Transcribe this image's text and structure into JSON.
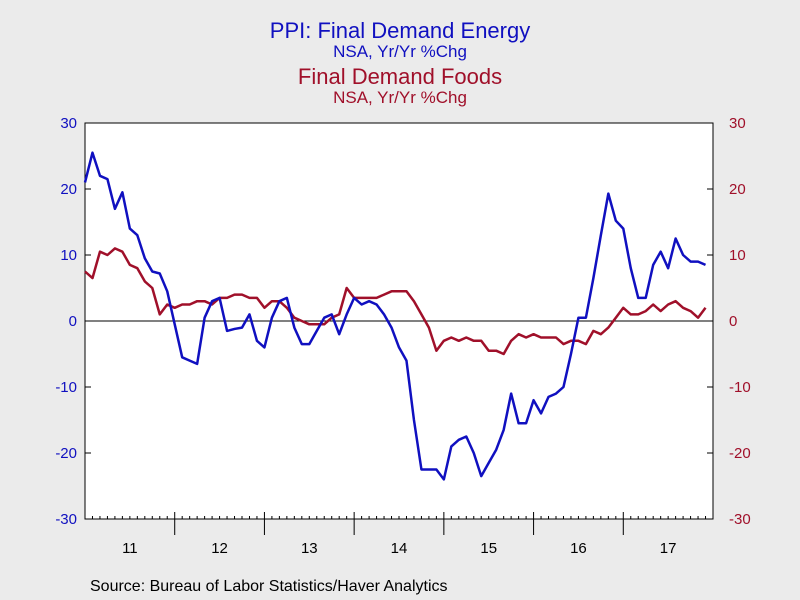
{
  "chart_data": {
    "type": "line",
    "title_1": "PPI: Final Demand Energy",
    "subtitle_1": "NSA, Yr/Yr %Chg",
    "title_2": "Final Demand Foods",
    "subtitle_2": "NSA, Yr/Yr %Chg",
    "source": "Source:  Bureau of Labor Statistics/Haver Analytics",
    "y_left": {
      "range": [
        -30,
        30
      ],
      "ticks": [
        30,
        20,
        10,
        0,
        -10,
        -20,
        -30
      ],
      "color": "#1010C0"
    },
    "y_right": {
      "range": [
        -30,
        30
      ],
      "ticks": [
        30,
        20,
        10,
        0,
        -10,
        -20,
        -30
      ],
      "color": "#A0102A"
    },
    "x_tick_labels": [
      "11",
      "12",
      "13",
      "14",
      "15",
      "16",
      "17"
    ],
    "x_start": "2011-01",
    "grid": false,
    "zero_line": true,
    "series": [
      {
        "color": "#1010C0",
        "values": [
          21.0,
          25.5,
          22.0,
          21.5,
          17.0,
          19.5,
          14.0,
          13.0,
          9.5,
          7.5,
          7.2,
          4.5,
          -0.5,
          -5.5,
          -6.0,
          -6.5,
          0.5,
          3.0,
          3.5,
          -1.5,
          -1.2,
          -1.0,
          1.0,
          -3.0,
          -4.0,
          0.5,
          3.0,
          3.5,
          -1.0,
          -3.5,
          -3.5,
          -1.5,
          0.5,
          1.0,
          -2.0,
          1.0,
          3.5,
          2.5,
          3.0,
          2.5,
          1.0,
          -1.0,
          -4.0,
          -6.0,
          -15.0,
          -22.5,
          -22.5,
          -22.5,
          -24.0,
          -19.0,
          -18.0,
          -17.5,
          -20.0,
          -23.5,
          -21.5,
          -19.5,
          -16.5,
          -11.0,
          -15.5,
          -15.5,
          -12.0,
          -14.0,
          -11.5,
          -11.0,
          -10.0,
          -5.0,
          0.5,
          0.5,
          6.5,
          13.0,
          19.3,
          15.2,
          14.0,
          8.0,
          3.5,
          3.5,
          8.5,
          10.5,
          8.0,
          12.5,
          10.0,
          9.0,
          9.0,
          8.5
        ]
      },
      {
        "color": "#A0102A",
        "values": [
          7.5,
          6.5,
          10.5,
          10.0,
          11.0,
          10.5,
          8.5,
          8.0,
          6.0,
          5.0,
          1.0,
          2.5,
          2.0,
          2.5,
          2.5,
          3.0,
          3.0,
          2.5,
          3.5,
          3.5,
          4.0,
          4.0,
          3.5,
          3.5,
          2.0,
          3.0,
          3.0,
          2.0,
          0.5,
          0.0,
          -0.5,
          -0.5,
          -0.5,
          0.5,
          1.0,
          5.0,
          3.5,
          3.5,
          3.5,
          3.5,
          4.0,
          4.5,
          4.5,
          4.5,
          3.0,
          1.0,
          -1.0,
          -4.5,
          -3.0,
          -2.5,
          -3.0,
          -2.5,
          -3.0,
          -3.0,
          -4.5,
          -4.5,
          -5.0,
          -3.0,
          -2.0,
          -2.5,
          -2.0,
          -2.5,
          -2.5,
          -2.5,
          -3.5,
          -3.0,
          -3.0,
          -3.5,
          -1.5,
          -2.0,
          -1.0,
          0.5,
          2.0,
          1.0,
          1.0,
          1.5,
          2.5,
          1.5,
          2.5,
          3.0,
          2.0,
          1.5,
          0.5,
          2.0
        ]
      }
    ]
  }
}
